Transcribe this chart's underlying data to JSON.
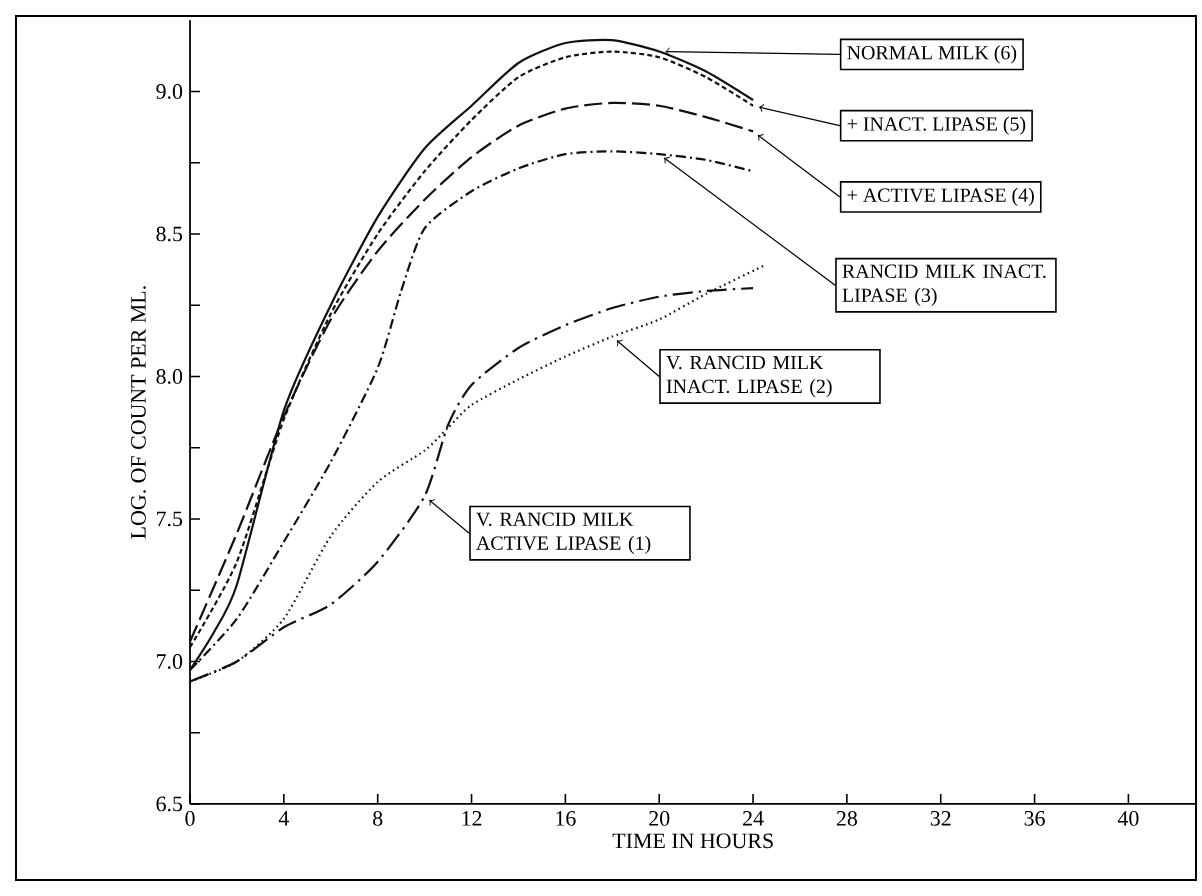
{
  "chart_data": {
    "type": "line",
    "xlabel": "TIME IN HOURS",
    "ylabel": "LOG. OF COUNT PER ML.",
    "xlim": [
      0,
      42.9
    ],
    "ylim": [
      6.5,
      9.25
    ],
    "xticks": [
      0,
      4,
      8,
      12,
      16,
      20,
      24,
      28,
      32,
      36,
      40
    ],
    "yticks": [
      {
        "value": 6.5,
        "label": "6.5"
      },
      {
        "value": 6.75,
        "label": null
      },
      {
        "value": 7.0,
        "label": "7.0"
      },
      {
        "value": 7.25,
        "label": null
      },
      {
        "value": 7.5,
        "label": "7.5"
      },
      {
        "value": 7.75,
        "label": null
      },
      {
        "value": 8.0,
        "label": "8.0"
      },
      {
        "value": 8.25,
        "label": null
      },
      {
        "value": 8.5,
        "label": "8.5"
      },
      {
        "value": 8.75,
        "label": null
      },
      {
        "value": 9.0,
        "label": "9.0"
      }
    ],
    "grid": false,
    "marker": "none",
    "series": [
      {
        "name": "NORMAL MILK (6)",
        "color": "#111111",
        "line_style": "solid",
        "x": [
          0,
          1,
          2,
          4,
          6,
          8,
          10,
          12,
          14,
          16,
          18,
          20,
          22,
          24
        ],
        "values": [
          6.97,
          7.1,
          7.27,
          7.88,
          8.25,
          8.56,
          8.8,
          8.95,
          9.1,
          9.17,
          9.18,
          9.14,
          9.07,
          8.97
        ]
      },
      {
        "name": "+ INACT. LIPASE (5)",
        "color": "#111111",
        "line_style": "short_dashed",
        "x": [
          0,
          2,
          4,
          6,
          8,
          10,
          12,
          14,
          16,
          18,
          20,
          22,
          24
        ],
        "values": [
          7.05,
          7.35,
          7.85,
          8.22,
          8.5,
          8.72,
          8.9,
          9.05,
          9.12,
          9.14,
          9.12,
          9.05,
          8.95
        ]
      },
      {
        "name": "+ ACTIVE LIPASE (4)",
        "color": "#111111",
        "line_style": "dashed",
        "x": [
          0,
          2,
          4,
          6,
          8,
          10,
          12,
          14,
          16,
          18,
          20,
          22,
          24
        ],
        "values": [
          7.07,
          7.45,
          7.86,
          8.2,
          8.44,
          8.62,
          8.77,
          8.88,
          8.94,
          8.96,
          8.95,
          8.91,
          8.86
        ]
      },
      {
        "name": "RANCID MILK INACT. LIPASE (3)",
        "color": "#111111",
        "line_style": "dashdot",
        "x": [
          0,
          2,
          4,
          6,
          8,
          9,
          10,
          12,
          14,
          16,
          18,
          20,
          22,
          24
        ],
        "values": [
          6.97,
          7.15,
          7.42,
          7.7,
          8.03,
          8.3,
          8.52,
          8.65,
          8.73,
          8.78,
          8.79,
          8.78,
          8.76,
          8.72
        ]
      },
      {
        "name": "V. RANCID MILK INACT. LIPASE (2)",
        "color": "#111111",
        "line_style": "dotted",
        "x": [
          0,
          2,
          4,
          6,
          8,
          10,
          11,
          12,
          14,
          16,
          18,
          20,
          22,
          24.5
        ],
        "values": [
          6.93,
          7.0,
          7.15,
          7.44,
          7.63,
          7.74,
          7.82,
          7.9,
          7.99,
          8.07,
          8.14,
          8.2,
          8.29,
          8.39
        ]
      },
      {
        "name": "V. RANCID MILK ACTIVE LIPASE (1)",
        "color": "#111111",
        "line_style": "long_dashdot",
        "x": [
          0,
          2,
          4,
          6,
          8,
          10,
          11,
          12,
          14,
          16,
          18,
          20,
          22,
          24
        ],
        "values": [
          6.93,
          7.0,
          7.12,
          7.2,
          7.35,
          7.58,
          7.83,
          7.97,
          8.1,
          8.18,
          8.24,
          8.28,
          8.3,
          8.31
        ]
      }
    ]
  }
}
